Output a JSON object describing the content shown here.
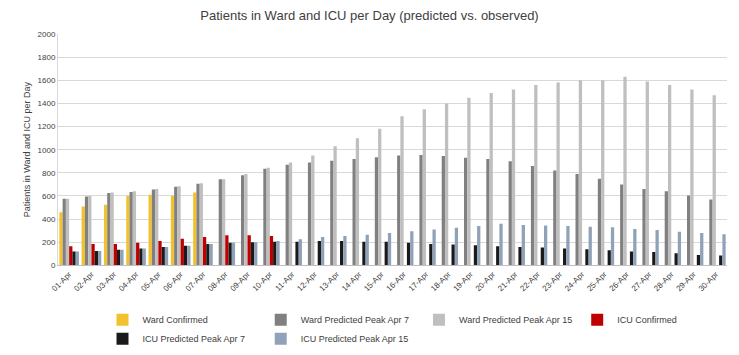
{
  "chart_data": {
    "type": "bar",
    "title": "Patients in Ward and ICU per Day (predicted vs. observed)",
    "y_label": "Patients in Ward and ICU per Day",
    "categories": [
      "01-Apr",
      "02-Apr",
      "03-Apr",
      "04-Apr",
      "05-Apr",
      "06-Apr",
      "07-Apr",
      "08-Apr",
      "09-Apr",
      "10-Apr",
      "11-Apr",
      "12-Apr",
      "13-Apr",
      "14-Apr",
      "15-Apr",
      "16-Apr",
      "17-Apr",
      "18-Apr",
      "19-Apr",
      "20-Apr",
      "21-Apr",
      "22-Apr",
      "23-Apr",
      "24-Apr",
      "25-Apr",
      "26-Apr",
      "27-Apr",
      "28-Apr",
      "29-Apr",
      "30-Apr"
    ],
    "series": [
      {
        "name": "Ward Confirmed",
        "color": "#f2c12e",
        "values": [
          460,
          510,
          525,
          600,
          610,
          600,
          630,
          null,
          null,
          null,
          null,
          null,
          null,
          null,
          null,
          null,
          null,
          null,
          null,
          null,
          null,
          null,
          null,
          null,
          null,
          null,
          null,
          null,
          null,
          null
        ]
      },
      {
        "name": "Ward Predicted Peak Apr 7",
        "color": "#808080",
        "values": [
          575,
          595,
          625,
          635,
          655,
          680,
          705,
          745,
          780,
          835,
          870,
          890,
          905,
          920,
          935,
          950,
          955,
          945,
          930,
          920,
          900,
          860,
          820,
          790,
          750,
          700,
          660,
          640,
          605,
          570
        ]
      },
      {
        "name": "Ward Predicted Peak Apr 15",
        "color": "#bfbfbf",
        "values": [
          575,
          600,
          630,
          640,
          660,
          685,
          710,
          745,
          790,
          845,
          890,
          950,
          1030,
          1100,
          1180,
          1290,
          1350,
          1400,
          1450,
          1490,
          1520,
          1560,
          1580,
          1600,
          1600,
          1630,
          1590,
          1560,
          1520,
          1470
        ]
      },
      {
        "name": "ICU Confirmed",
        "color": "#c00000",
        "values": [
          165,
          185,
          185,
          195,
          210,
          230,
          245,
          260,
          260,
          255,
          null,
          null,
          null,
          null,
          null,
          null,
          null,
          null,
          null,
          null,
          null,
          null,
          null,
          null,
          null,
          null,
          null,
          null,
          null,
          null
        ]
      },
      {
        "name": "ICU Predicted Peak Apr 7",
        "color": "#1a1a1a",
        "values": [
          120,
          125,
          135,
          145,
          160,
          170,
          185,
          195,
          200,
          205,
          205,
          210,
          210,
          205,
          205,
          195,
          185,
          180,
          175,
          165,
          160,
          155,
          145,
          140,
          130,
          120,
          115,
          105,
          90,
          85
        ]
      },
      {
        "name": "ICU Predicted Peak Apr 15",
        "color": "#8fa2b8",
        "values": [
          120,
          125,
          135,
          145,
          160,
          170,
          185,
          195,
          200,
          210,
          225,
          245,
          255,
          265,
          280,
          295,
          310,
          325,
          340,
          360,
          350,
          345,
          340,
          335,
          330,
          315,
          305,
          290,
          280,
          270
        ]
      }
    ],
    "ylim": [
      0,
      2000
    ],
    "yticks": [
      0,
      200,
      400,
      600,
      800,
      1000,
      1200,
      1400,
      1600,
      1800,
      2000
    ],
    "grid": true,
    "legend": "bottom"
  }
}
